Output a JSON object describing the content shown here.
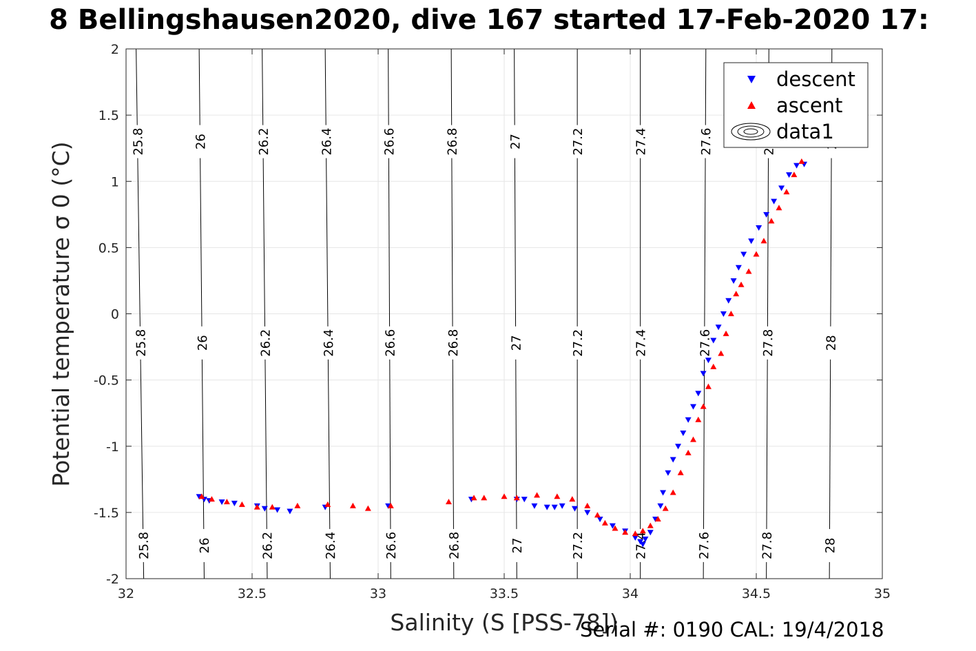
{
  "title": "8 Bellingshausen2020, dive 167 started 17-Feb-2020 17:",
  "footer": "Serial #: 0190  CAL: 19/4/2018",
  "chart_data": {
    "type": "scatter",
    "xlabel": "Salinity (S [PSS-78])",
    "ylabel": "Potential temperature σ 0 (°C)",
    "xlim": [
      32,
      35
    ],
    "ylim": [
      -2,
      2
    ],
    "xticks": [
      "32",
      "32.5",
      "33",
      "33.5",
      "34",
      "34.5",
      "35"
    ],
    "yticks": [
      "-2",
      "-1.5",
      "-1",
      "-0.5",
      "0",
      "0.5",
      "1",
      "1.5",
      "2"
    ],
    "grid": true,
    "legend_position": "top-right",
    "legend": [
      "descent",
      "ascent",
      "data1"
    ],
    "contours": [
      {
        "level": "25.8",
        "s_bottom": 32.07,
        "s_top": 32.04
      },
      {
        "level": "26",
        "s_bottom": 32.31,
        "s_top": 32.29
      },
      {
        "level": "26.2",
        "s_bottom": 32.56,
        "s_top": 32.54
      },
      {
        "level": "26.4",
        "s_bottom": 32.81,
        "s_top": 32.79
      },
      {
        "level": "26.6",
        "s_bottom": 33.05,
        "s_top": 33.04
      },
      {
        "level": "26.8",
        "s_bottom": 33.3,
        "s_top": 33.29
      },
      {
        "level": "27",
        "s_bottom": 33.55,
        "s_top": 33.54
      },
      {
        "level": "27.2",
        "s_bottom": 33.79,
        "s_top": 33.79
      },
      {
        "level": "27.4",
        "s_bottom": 34.04,
        "s_top": 34.04
      },
      {
        "level": "27.6",
        "s_bottom": 34.29,
        "s_top": 34.3
      },
      {
        "level": "27.8",
        "s_bottom": 34.54,
        "s_top": 34.55
      },
      {
        "level": "28",
        "s_bottom": 34.79,
        "s_top": 34.8
      }
    ],
    "series": [
      {
        "name": "descent",
        "color": "#0000ff",
        "marker": "triangle-down",
        "points": [
          [
            32.29,
            -1.38
          ],
          [
            32.31,
            -1.4
          ],
          [
            32.33,
            -1.41
          ],
          [
            32.38,
            -1.42
          ],
          [
            32.43,
            -1.43
          ],
          [
            32.52,
            -1.45
          ],
          [
            32.55,
            -1.47
          ],
          [
            32.6,
            -1.48
          ],
          [
            32.65,
            -1.49
          ],
          [
            32.79,
            -1.46
          ],
          [
            33.04,
            -1.45
          ],
          [
            33.37,
            -1.4
          ],
          [
            33.55,
            -1.4
          ],
          [
            33.58,
            -1.4
          ],
          [
            33.62,
            -1.45
          ],
          [
            33.67,
            -1.46
          ],
          [
            33.7,
            -1.46
          ],
          [
            33.73,
            -1.45
          ],
          [
            33.78,
            -1.47
          ],
          [
            33.83,
            -1.5
          ],
          [
            33.88,
            -1.55
          ],
          [
            33.93,
            -1.6
          ],
          [
            33.98,
            -1.64
          ],
          [
            34.02,
            -1.69
          ],
          [
            34.04,
            -1.72
          ],
          [
            34.05,
            -1.74
          ],
          [
            34.06,
            -1.7
          ],
          [
            34.08,
            -1.65
          ],
          [
            34.1,
            -1.55
          ],
          [
            34.12,
            -1.45
          ],
          [
            34.13,
            -1.35
          ],
          [
            34.15,
            -1.2
          ],
          [
            34.17,
            -1.1
          ],
          [
            34.19,
            -1.0
          ],
          [
            34.21,
            -0.9
          ],
          [
            34.23,
            -0.8
          ],
          [
            34.25,
            -0.7
          ],
          [
            34.27,
            -0.6
          ],
          [
            34.29,
            -0.45
          ],
          [
            34.31,
            -0.35
          ],
          [
            34.33,
            -0.2
          ],
          [
            34.35,
            -0.1
          ],
          [
            34.37,
            0.0
          ],
          [
            34.39,
            0.1
          ],
          [
            34.41,
            0.25
          ],
          [
            34.43,
            0.35
          ],
          [
            34.45,
            0.45
          ],
          [
            34.48,
            0.55
          ],
          [
            34.51,
            0.65
          ],
          [
            34.54,
            0.75
          ],
          [
            34.57,
            0.85
          ],
          [
            34.6,
            0.95
          ],
          [
            34.63,
            1.05
          ],
          [
            34.66,
            1.12
          ],
          [
            34.69,
            1.13
          ]
        ]
      },
      {
        "name": "ascent",
        "color": "#ff0000",
        "marker": "triangle-up",
        "points": [
          [
            32.3,
            -1.38
          ],
          [
            32.34,
            -1.4
          ],
          [
            32.4,
            -1.42
          ],
          [
            32.46,
            -1.44
          ],
          [
            32.52,
            -1.46
          ],
          [
            32.58,
            -1.46
          ],
          [
            32.68,
            -1.45
          ],
          [
            32.8,
            -1.44
          ],
          [
            32.9,
            -1.45
          ],
          [
            32.96,
            -1.47
          ],
          [
            33.05,
            -1.45
          ],
          [
            33.28,
            -1.42
          ],
          [
            33.38,
            -1.39
          ],
          [
            33.42,
            -1.39
          ],
          [
            33.5,
            -1.38
          ],
          [
            33.55,
            -1.39
          ],
          [
            33.63,
            -1.37
          ],
          [
            33.71,
            -1.38
          ],
          [
            33.77,
            -1.4
          ],
          [
            33.83,
            -1.45
          ],
          [
            33.87,
            -1.52
          ],
          [
            33.9,
            -1.58
          ],
          [
            33.94,
            -1.62
          ],
          [
            33.98,
            -1.65
          ],
          [
            34.02,
            -1.66
          ],
          [
            34.05,
            -1.64
          ],
          [
            34.08,
            -1.6
          ],
          [
            34.11,
            -1.55
          ],
          [
            34.14,
            -1.47
          ],
          [
            34.17,
            -1.35
          ],
          [
            34.2,
            -1.2
          ],
          [
            34.23,
            -1.05
          ],
          [
            34.25,
            -0.95
          ],
          [
            34.27,
            -0.8
          ],
          [
            34.29,
            -0.7
          ],
          [
            34.31,
            -0.55
          ],
          [
            34.33,
            -0.4
          ],
          [
            34.36,
            -0.3
          ],
          [
            34.38,
            -0.15
          ],
          [
            34.4,
            0.0
          ],
          [
            34.42,
            0.15
          ],
          [
            34.44,
            0.22
          ],
          [
            34.47,
            0.32
          ],
          [
            34.5,
            0.45
          ],
          [
            34.53,
            0.55
          ],
          [
            34.56,
            0.7
          ],
          [
            34.59,
            0.8
          ],
          [
            34.62,
            0.92
          ],
          [
            34.65,
            1.05
          ],
          [
            34.68,
            1.15
          ]
        ]
      }
    ]
  }
}
